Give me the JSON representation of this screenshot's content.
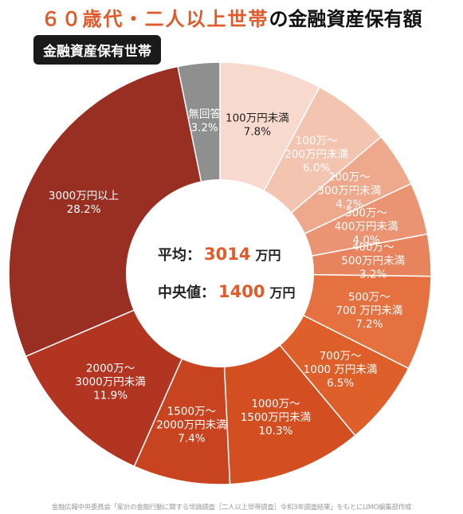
{
  "title": {
    "highlight": "６０歳代・二人以上世帯",
    "rest": "の金融資産保有額"
  },
  "subtitle_tag": "金融資産保有世帯",
  "center": {
    "avg_label": "平均：",
    "avg_value": "3014",
    "avg_unit": "万円",
    "median_label": "中央値：",
    "median_value": "1400",
    "median_unit": "万円"
  },
  "source": "金融広報中央委員会「家計の金融行動に関する世論調査［二人以上世帯調査］令和3年調査結果」をもとにLIMO編集部作成",
  "colors": {
    "accent": "#e05a2a",
    "values": "#e05a2a"
  },
  "chart_data": {
    "type": "pie",
    "donut": true,
    "slices": [
      {
        "label": [
          "100万円未満"
        ],
        "value": 7.8,
        "value_label": "7.8%",
        "color": "#f7d9cd"
      },
      {
        "label": [
          "100万～",
          "200万円未満"
        ],
        "value": 6.0,
        "value_label": "6.0%",
        "color": "#f3c4b0"
      },
      {
        "label": [
          "200万～",
          "300万円未満"
        ],
        "value": 4.2,
        "value_label": "4.2%",
        "color": "#eea98d"
      },
      {
        "label": [
          "300万～",
          "400万円未満"
        ],
        "value": 4.0,
        "value_label": "4.0%",
        "color": "#ea9473"
      },
      {
        "label": [
          "400万～",
          "500万円未満"
        ],
        "value": 3.2,
        "value_label": "3.2%",
        "color": "#e8845d"
      },
      {
        "label": [
          "500万～",
          "700 万円未満"
        ],
        "value": 7.2,
        "value_label": "7.2%",
        "color": "#e4713f"
      },
      {
        "label": [
          "700万～",
          "1000 万円未満"
        ],
        "value": 6.5,
        "value_label": "6.5%",
        "color": "#de5f2a"
      },
      {
        "label": [
          "1000万～",
          "1500万円未満"
        ],
        "value": 10.3,
        "value_label": "10.3%",
        "color": "#d34f22"
      },
      {
        "label": [
          "1500万～",
          "2000万円未満"
        ],
        "value": 7.4,
        "value_label": "7.4%",
        "color": "#c8431f"
      },
      {
        "label": [
          "2000万～",
          "3000万円未満"
        ],
        "value": 11.9,
        "value_label": "11.9%",
        "color": "#b23522"
      },
      {
        "label": [
          "3000万円以上"
        ],
        "value": 28.2,
        "value_label": "28.2%",
        "color": "#992e22"
      },
      {
        "label": [
          "無回答"
        ],
        "value": 3.2,
        "value_label": "3.2%",
        "color": "#8f8f8f"
      }
    ]
  }
}
